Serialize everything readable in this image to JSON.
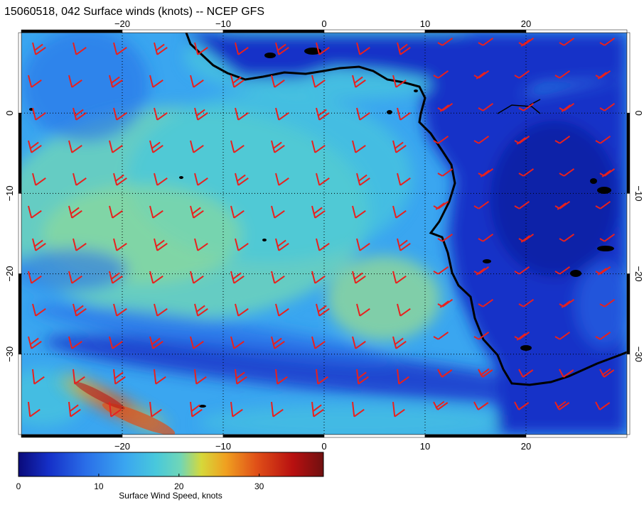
{
  "title": "15060518, 042 Surface winds (knots) -- NCEP GFS",
  "colorbar": {
    "label": "Surface Wind Speed, knots",
    "ticks": [
      {
        "value": 0,
        "label": "0"
      },
      {
        "value": 10,
        "label": "10"
      },
      {
        "value": 20,
        "label": "20"
      },
      {
        "value": 30,
        "label": "30"
      }
    ],
    "range": [
      0,
      38
    ],
    "colors": [
      "#0a0a7a",
      "#1530c8",
      "#2a6ee8",
      "#3aa6f0",
      "#48c8dc",
      "#6fd6b8",
      "#9ee08a",
      "#d6d83a",
      "#f0a020",
      "#e05018",
      "#b81010",
      "#701010"
    ]
  },
  "axes": {
    "lon_range": [
      -30,
      30
    ],
    "lat_range": [
      -40,
      10
    ],
    "lon_ticks": [
      {
        "value": -20,
        "label": "−20"
      },
      {
        "value": -10,
        "label": "−10"
      },
      {
        "value": 0,
        "label": "0"
      },
      {
        "value": 10,
        "label": "10"
      },
      {
        "value": 20,
        "label": "20"
      }
    ],
    "lat_ticks": [
      {
        "value": 0,
        "label": "0"
      },
      {
        "value": -10,
        "label": "−10"
      },
      {
        "value": -20,
        "label": "−20"
      },
      {
        "value": -30,
        "label": "−30"
      }
    ],
    "grid": "dotted"
  },
  "colors": {
    "barbs": "#e8201e",
    "coast": "#000000",
    "ocean_base": "#3aa6f0",
    "land_base": "#1530c8"
  }
}
